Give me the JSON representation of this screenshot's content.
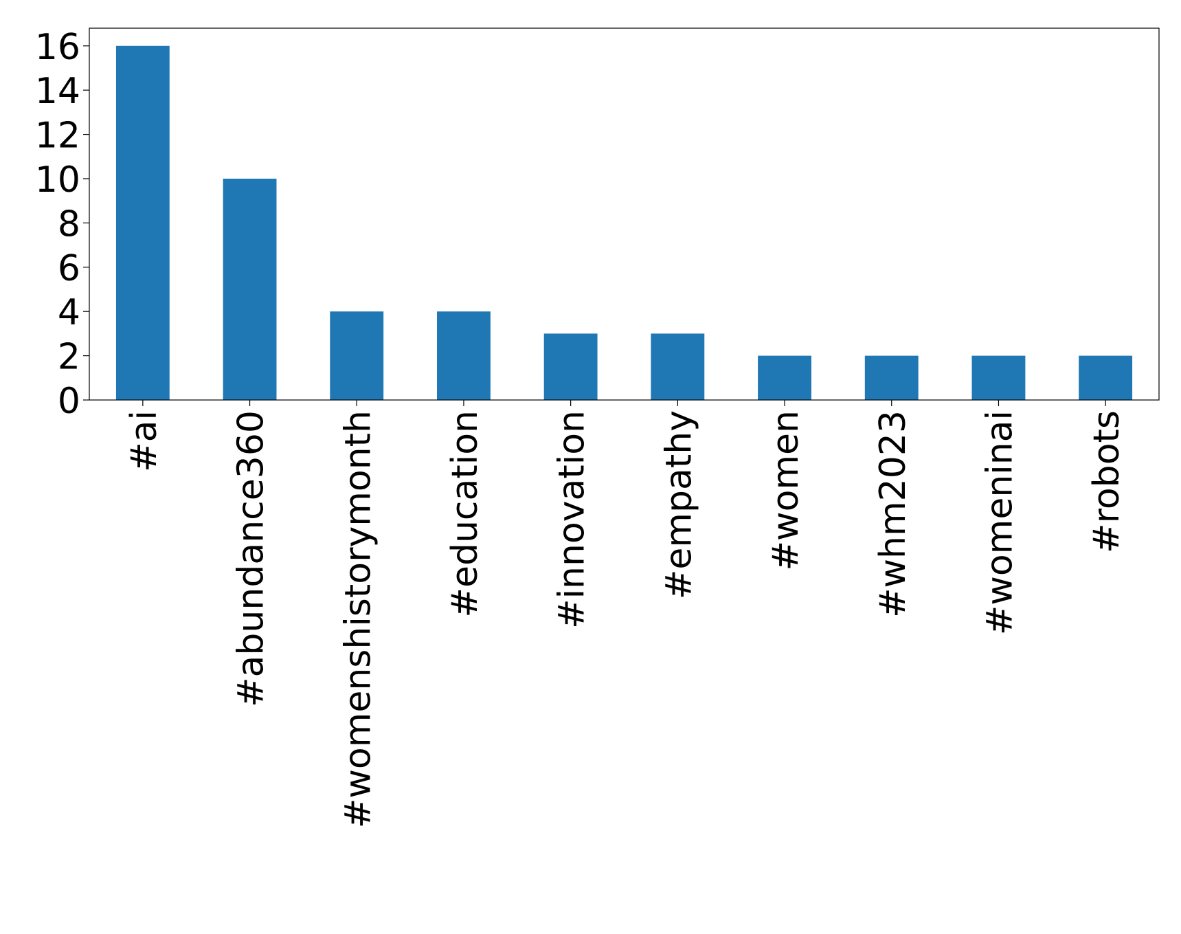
{
  "chart_data": {
    "type": "bar",
    "categories": [
      "#ai",
      "#abundance360",
      "#womenshistorymonth",
      "#education",
      "#innovation",
      "#empathy",
      "#women",
      "#whm2023",
      "#womeninai",
      "#robots"
    ],
    "values": [
      16,
      10,
      4,
      4,
      3,
      3,
      2,
      2,
      2,
      2
    ],
    "color": "#1f77b4",
    "ylim": [
      0,
      16.8
    ],
    "yticks": [
      0,
      2,
      4,
      6,
      8,
      10,
      12,
      14,
      16
    ],
    "grid": false
  }
}
